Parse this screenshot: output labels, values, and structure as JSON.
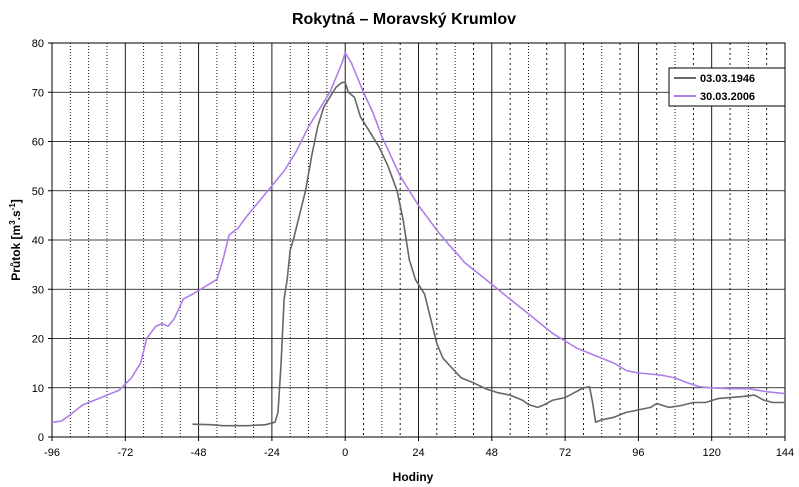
{
  "chart_data": {
    "type": "line",
    "title": "Rokytná – Moravský Krumlov",
    "xlabel": "Hodiny",
    "ylabel": {
      "base": "Průtok [m",
      "sup1": "3",
      "mid": ".s",
      "sup2": "-1",
      "end": "]"
    },
    "xlim": [
      -96,
      144
    ],
    "ylim": [
      0,
      80
    ],
    "x_ticks": [
      -96,
      -72,
      -48,
      -24,
      0,
      24,
      48,
      72,
      96,
      120,
      144
    ],
    "y_ticks": [
      0,
      10,
      20,
      30,
      40,
      50,
      60,
      70,
      80
    ],
    "x_minor_step": 6,
    "grid": "vertical dashed every 6 h, solid at 24 h ticks, horizontal solid every 10",
    "legend_position": "top-right",
    "series": [
      {
        "name": "03.03.1946",
        "color": "#666666",
        "points": [
          [
            -50,
            2.6
          ],
          [
            -44,
            2.5
          ],
          [
            -40,
            2.3
          ],
          [
            -32,
            2.3
          ],
          [
            -26,
            2.5
          ],
          [
            -23,
            3.0
          ],
          [
            -22,
            5
          ],
          [
            -21,
            15
          ],
          [
            -20,
            28
          ],
          [
            -19,
            32
          ],
          [
            -18,
            38
          ],
          [
            -17,
            40
          ],
          [
            -15,
            45
          ],
          [
            -13,
            50
          ],
          [
            -11,
            57
          ],
          [
            -9,
            63
          ],
          [
            -7,
            67
          ],
          [
            -5,
            69
          ],
          [
            -3,
            71
          ],
          [
            -1,
            72
          ],
          [
            0,
            72
          ],
          [
            1,
            70
          ],
          [
            3,
            69
          ],
          [
            5,
            65
          ],
          [
            8,
            62
          ],
          [
            11,
            59
          ],
          [
            14,
            55
          ],
          [
            17,
            50
          ],
          [
            19,
            44
          ],
          [
            21,
            36
          ],
          [
            23,
            32
          ],
          [
            26,
            29
          ],
          [
            28,
            24
          ],
          [
            30,
            19
          ],
          [
            32,
            16
          ],
          [
            35,
            14
          ],
          [
            38,
            12
          ],
          [
            42,
            11
          ],
          [
            46,
            9.8
          ],
          [
            50,
            9
          ],
          [
            54,
            8.5
          ],
          [
            58,
            7.5
          ],
          [
            60,
            6.6
          ],
          [
            63,
            6
          ],
          [
            65,
            6.5
          ],
          [
            68,
            7.5
          ],
          [
            72,
            8
          ],
          [
            75,
            9
          ],
          [
            78,
            10
          ],
          [
            80,
            10.2
          ],
          [
            81,
            7
          ],
          [
            82,
            3
          ],
          [
            84,
            3.5
          ],
          [
            88,
            4
          ],
          [
            92,
            5
          ],
          [
            96,
            5.5
          ],
          [
            100,
            6
          ],
          [
            102,
            6.8
          ],
          [
            106,
            6
          ],
          [
            110,
            6.4
          ],
          [
            114,
            7
          ],
          [
            118,
            7
          ],
          [
            122,
            7.8
          ],
          [
            126,
            8
          ],
          [
            130,
            8.2
          ],
          [
            134,
            8.5
          ],
          [
            137,
            7.5
          ],
          [
            140,
            7
          ],
          [
            144,
            7
          ]
        ]
      },
      {
        "name": "30.03.2006",
        "color": "#b07ee8",
        "points": [
          [
            -96,
            3
          ],
          [
            -93,
            3.2
          ],
          [
            -90,
            4.5
          ],
          [
            -86,
            6.5
          ],
          [
            -82,
            7.5
          ],
          [
            -78,
            8.5
          ],
          [
            -74,
            9.5
          ],
          [
            -70,
            12
          ],
          [
            -67,
            15
          ],
          [
            -65,
            20
          ],
          [
            -62,
            22.5
          ],
          [
            -60,
            23
          ],
          [
            -58,
            22.5
          ],
          [
            -56,
            24
          ],
          [
            -53,
            28
          ],
          [
            -50,
            29
          ],
          [
            -46,
            30.5
          ],
          [
            -42,
            32
          ],
          [
            -40,
            36
          ],
          [
            -38,
            41
          ],
          [
            -35,
            42.5
          ],
          [
            -32,
            45
          ],
          [
            -28,
            48
          ],
          [
            -24,
            51
          ],
          [
            -20,
            54
          ],
          [
            -16,
            58
          ],
          [
            -12,
            63
          ],
          [
            -8,
            67
          ],
          [
            -5,
            70
          ],
          [
            -3,
            73
          ],
          [
            -1,
            76
          ],
          [
            0,
            78
          ],
          [
            2,
            76
          ],
          [
            4,
            73
          ],
          [
            6,
            70
          ],
          [
            9,
            66
          ],
          [
            12,
            61
          ],
          [
            15,
            57
          ],
          [
            18,
            53
          ],
          [
            21,
            50
          ],
          [
            24,
            47
          ],
          [
            27,
            44.5
          ],
          [
            30,
            42
          ],
          [
            34,
            39
          ],
          [
            37,
            37
          ],
          [
            39,
            35.5
          ],
          [
            42,
            34
          ],
          [
            45,
            32.5
          ],
          [
            48,
            31
          ],
          [
            52,
            29
          ],
          [
            56,
            27
          ],
          [
            60,
            25
          ],
          [
            64,
            23
          ],
          [
            68,
            21
          ],
          [
            72,
            19.5
          ],
          [
            76,
            18
          ],
          [
            80,
            17
          ],
          [
            84,
            16
          ],
          [
            88,
            15
          ],
          [
            92,
            13.5
          ],
          [
            96,
            13
          ],
          [
            100,
            12.8
          ],
          [
            104,
            12.5
          ],
          [
            108,
            12
          ],
          [
            112,
            11
          ],
          [
            116,
            10.2
          ],
          [
            120,
            10
          ],
          [
            126,
            9.8
          ],
          [
            132,
            9.8
          ],
          [
            138,
            9.2
          ],
          [
            144,
            8.8
          ]
        ]
      }
    ]
  }
}
